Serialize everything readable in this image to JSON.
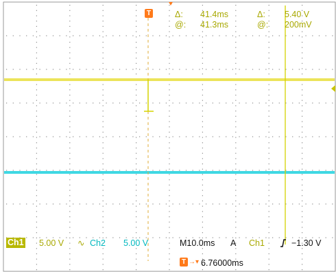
{
  "colors": {
    "ch1": "#ece45a",
    "ch2": "#3fd8e3",
    "cursor": "#d4d200",
    "trigger_marker": "#ff7a1a",
    "grid": "#9a9a9a"
  },
  "cursors": {
    "time_delta_symbol": "Δ:",
    "time_delta": "41.4ms",
    "time_at_symbol": "@:",
    "time_at": "41.3ms",
    "volt_delta_symbol": "Δ:",
    "volt_delta": "5.40 V",
    "volt_at_symbol": "@:",
    "volt_at": "200mV"
  },
  "status": {
    "ch1_label": "Ch1",
    "ch1_scale": "5.00 V",
    "ch1_coupling_icon": "∿",
    "ch2_label": "Ch2",
    "ch2_scale": "5.00 V",
    "timebase": "M10.0ms",
    "acq_mode": "A",
    "trigger_source": "Ch1",
    "trigger_slope_icon": "rising-edge",
    "trigger_level": "−1.30 V",
    "trigger_position": "6.76000ms"
  },
  "icons": {
    "trigger_marker": "T",
    "trigger_offset_arrow": "→▾"
  }
}
